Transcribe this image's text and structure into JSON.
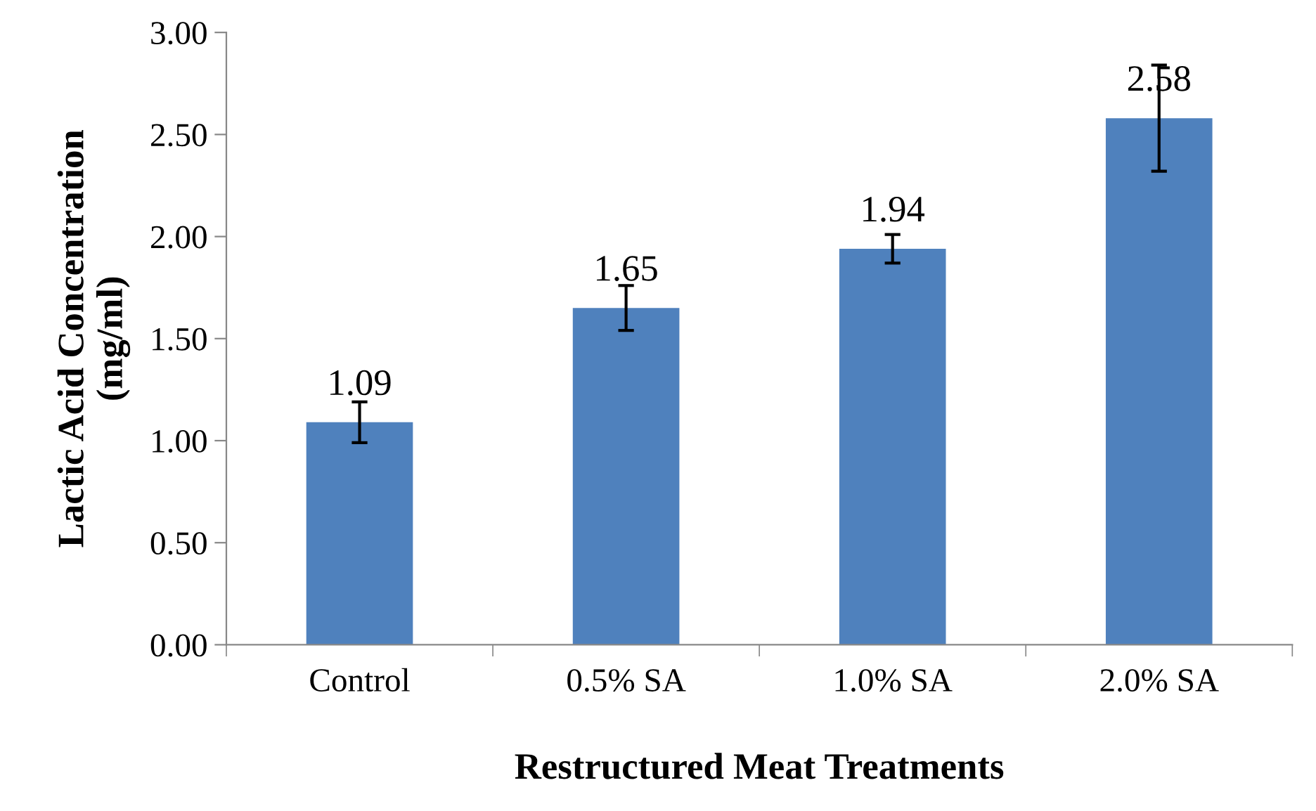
{
  "chart_data": {
    "type": "bar",
    "xlabel": "Restructured Meat Treatments",
    "ylabel": "Lactic Acid Concentration\n(mg/ml)",
    "categories": [
      "Control",
      "0.5% SA",
      "1.0% SA",
      "2.0% SA"
    ],
    "values": [
      1.09,
      1.65,
      1.94,
      2.58
    ],
    "errors": [
      0.1,
      0.11,
      0.07,
      0.26
    ],
    "color": "#4f81bd",
    "data_labels": true,
    "ylim": [
      0,
      3
    ],
    "yticks": [
      {
        "value": 0,
        "label": "0.00"
      },
      {
        "value": 0.5,
        "label": "0.50"
      },
      {
        "value": 1,
        "label": "1.00"
      },
      {
        "value": 1.5,
        "label": "1.50"
      },
      {
        "value": 2,
        "label": "2.00"
      },
      {
        "value": 2.5,
        "label": "2.50"
      },
      {
        "value": 3,
        "label": "3.00"
      }
    ],
    "grid": false,
    "legend": false
  }
}
